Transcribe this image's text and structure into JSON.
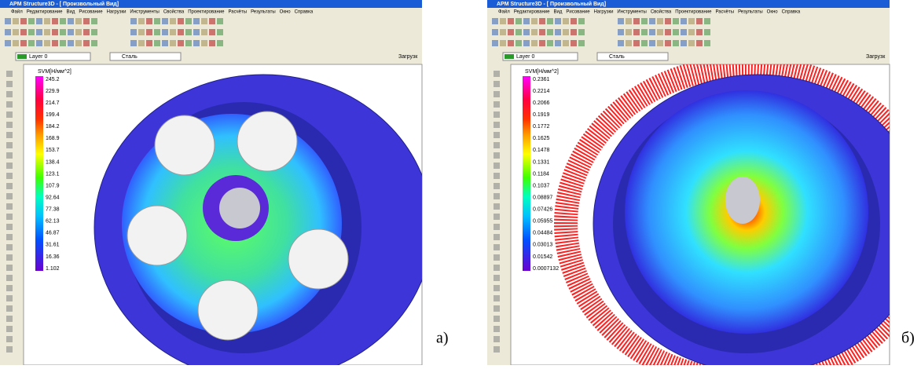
{
  "panels": [
    {
      "title": "APM Structure3D - [ Произвольный Вид]",
      "menu": [
        "Файл",
        "Редактирование",
        "Вид",
        "Рисование",
        "Нагрузки",
        "Инструменты",
        "Свойства",
        "Проектирование",
        "Расчёты",
        "Результаты",
        "Окно",
        "Справка"
      ],
      "layer": "Layer 0",
      "material": "Сталь",
      "load": "Загрузк",
      "legend_title": "SVM[Н/мм^2]",
      "legend": [
        "245.2",
        "229.9",
        "214.7",
        "199.4",
        "184.2",
        "168.9",
        "153.7",
        "138.4",
        "123.1",
        "107.9",
        "92.64",
        "77.38",
        "62.13",
        "46.87",
        "31.61",
        "16.36",
        "1.102"
      ],
      "label": "а)"
    },
    {
      "title": "APM Structure3D - [ Произвольный Вид]",
      "menu": [
        "Файл",
        "Редактирование",
        "Вид",
        "Рисование",
        "Нагрузки",
        "Инструменты",
        "Свойства",
        "Проектирование",
        "Расчёты",
        "Результаты",
        "Окно",
        "Справка"
      ],
      "layer": "Layer 0",
      "material": "Сталь",
      "load": "Загрузк",
      "legend_title": "SVM[Н/мм^2]",
      "legend": [
        "0.2361",
        "0.2214",
        "0.2066",
        "0.1919",
        "0.1772",
        "0.1625",
        "0.1478",
        "0.1331",
        "0.1184",
        "0.1037",
        "0.08897",
        "0.07426",
        "0.05955",
        "0.04484",
        "0.03013",
        "0.01542",
        "0.0007132"
      ],
      "label": "б)"
    }
  ]
}
